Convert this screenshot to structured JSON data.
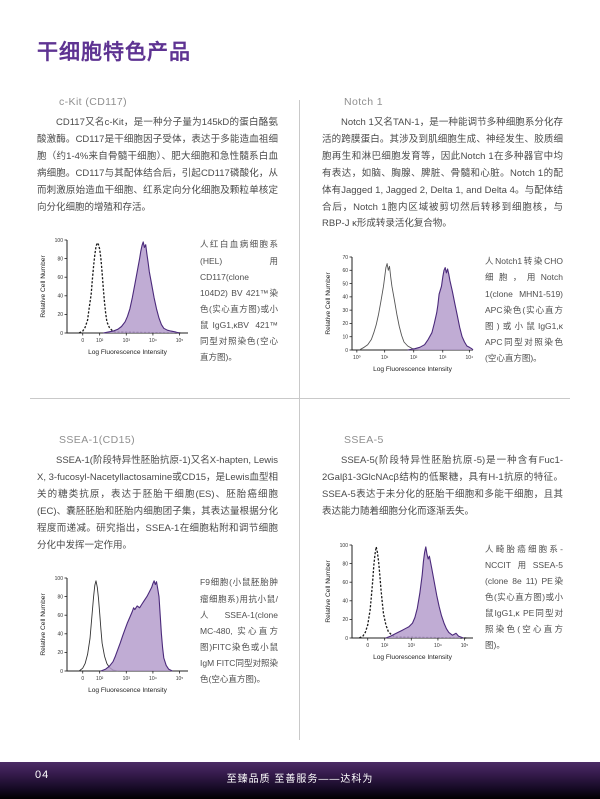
{
  "page": {
    "title": "干细胞特色产品",
    "accent_color": "#5e3392"
  },
  "sections": [
    {
      "heading": "c-Kit (CD117)",
      "body": "CD117又名c-Kit，是一种分子量为145kD的蛋白酪氨酸激酶。CD117是干细胞因子受体，表达于多能造血祖细胞（约1-4%来自骨髓干细胞）、肥大细胞和急性髓系白血病细胞。CD117与其配体结合后，引起CD117磷酸化，从而刺激原始造血干细胞、红系定向分化细胞及颗粒单核定向分化细胞的增殖和存活。",
      "caption": "人红白血病细胞系(HEL)用CD117(clone 104D2) BV 421™染色(实心直方图)或小鼠IgG1,κBV 421™ 同型对照染色(空心直方图)。"
    },
    {
      "heading": "Notch 1",
      "body": "Notch 1又名TAN-1，是一种能调节多种细胞系分化存活的跨膜蛋白。其涉及到肌细胞生成、神经发生、胶质细胞再生和淋巴细胞发育等，因此Notch 1在多种器官中均有表达，如脑、胸腺、脾脏、骨髓和心脏。Notch 1的配体有Jagged 1, Jagged 2, Delta 1, and Delta 4。与配体结合后，Notch 1胞内区域被剪切然后转移到细胞核，与RBP-J κ形成转录活化复合物。",
      "caption": "人Notch1转染CHO细胞，用Notch 1(clone MHN1-519) APC染色(实心直方图)或小鼠IgG1,κ APC同型对照染色(空心直方图)。"
    },
    {
      "heading": "SSEA-1(CD15)",
      "body": "SSEA-1(阶段特异性胚胎抗原-1)又名X-hapten, Lewis X, 3-fucosyl-Nacetyllactosamine或CD15，是Lewis血型相关的糖类抗原，表达于胚胎干细胞(ES)、胚胎癌细胞(EC)、囊胚胚胎和胚胎内细胞团子集，其表达量根据分化程度而递减。研究指出，SSEA-1在细胞粘附和调节细胞分化中发挥一定作用。",
      "caption": "F9细胞(小鼠胚胎肿瘤细胞系)用抗小鼠/人SSEA-1(clone MC-480, 实心直方图)FITC染色或小鼠IgM FITC同型对照染色(空心直方图)。"
    },
    {
      "heading": "SSEA-5",
      "body": "SSEA-5(阶段特异性胚胎抗原-5)是一种含有Fuc1-2Galβ1-3GlcNAcβ结构的低聚糖，具有H-1抗原的特征。SSEA-5表达于未分化的胚胎干细胞和多能干细胞，且其表达能力随着细胞分化而逐渐丢失。",
      "caption": "人畸胎癌细胞系-NCCIT用SSEA-5 (clone 8e 11) PE染色(实心直方图)或小鼠IgG1,κ PE同型对照染色(空心直方图)。"
    }
  ],
  "footer": {
    "page_number": "04",
    "slogan": "至臻品质 至善服务——达科为"
  },
  "chart_data": [
    {
      "type": "area",
      "id": "cd117-bv421-histogram",
      "title": "",
      "xlabel": "Log Fluorescence Intensity",
      "ylabel": "Relative Cell Number",
      "ylim": [
        0,
        100
      ],
      "yticks": [
        0,
        20,
        40,
        60,
        80,
        100
      ],
      "xticks": [
        {
          "pos": 0.13,
          "label": "0"
        },
        {
          "pos": 0.27,
          "label": "10²"
        },
        {
          "pos": 0.49,
          "label": "10³"
        },
        {
          "pos": 0.71,
          "label": "10⁴"
        },
        {
          "pos": 0.93,
          "label": "10⁵"
        }
      ],
      "series": [
        {
          "name": "isotype-control-open",
          "style": "dashed",
          "stroke": "#1a1a1a",
          "points": [
            [
              0.1,
              0
            ],
            [
              0.13,
              2
            ],
            [
              0.15,
              6
            ],
            [
              0.17,
              14
            ],
            [
              0.18,
              24
            ],
            [
              0.2,
              42
            ],
            [
              0.21,
              58
            ],
            [
              0.22,
              72
            ],
            [
              0.23,
              84
            ],
            [
              0.24,
              93
            ],
            [
              0.25,
              97
            ],
            [
              0.26,
              95
            ],
            [
              0.27,
              90
            ],
            [
              0.28,
              80
            ],
            [
              0.29,
              65
            ],
            [
              0.3,
              48
            ],
            [
              0.31,
              33
            ],
            [
              0.32,
              21
            ],
            [
              0.33,
              12
            ],
            [
              0.35,
              6
            ],
            [
              0.37,
              3
            ],
            [
              0.4,
              1
            ],
            [
              0.95,
              0
            ]
          ]
        },
        {
          "name": "cd117-stained-filled",
          "style": "filled",
          "stroke": "#4b2a7b",
          "fill": "#b29aca",
          "points": [
            [
              0.3,
              0
            ],
            [
              0.34,
              1
            ],
            [
              0.38,
              2
            ],
            [
              0.42,
              4
            ],
            [
              0.45,
              7
            ],
            [
              0.48,
              12
            ],
            [
              0.5,
              18
            ],
            [
              0.52,
              26
            ],
            [
              0.54,
              38
            ],
            [
              0.56,
              52
            ],
            [
              0.58,
              66
            ],
            [
              0.6,
              80
            ],
            [
              0.61,
              88
            ],
            [
              0.62,
              94
            ],
            [
              0.63,
              98
            ],
            [
              0.64,
              92
            ],
            [
              0.65,
              95
            ],
            [
              0.66,
              85
            ],
            [
              0.67,
              76
            ],
            [
              0.68,
              66
            ],
            [
              0.7,
              52
            ],
            [
              0.72,
              38
            ],
            [
              0.74,
              26
            ],
            [
              0.76,
              16
            ],
            [
              0.78,
              9
            ],
            [
              0.8,
              5
            ],
            [
              0.83,
              3
            ],
            [
              0.86,
              2
            ],
            [
              0.9,
              1
            ],
            [
              0.93,
              0
            ]
          ]
        }
      ]
    },
    {
      "type": "area",
      "id": "notch1-apc-histogram",
      "title": "",
      "xlabel": "Log Fluorescence Intensity",
      "ylabel": "Relative Cell Number",
      "ylim": [
        0,
        70
      ],
      "yticks": [
        0,
        10,
        20,
        30,
        40,
        50,
        60,
        70
      ],
      "xticks": [
        {
          "pos": 0.04,
          "label": "10⁰"
        },
        {
          "pos": 0.27,
          "label": "10¹"
        },
        {
          "pos": 0.51,
          "label": "10²"
        },
        {
          "pos": 0.75,
          "label": "10³"
        },
        {
          "pos": 0.97,
          "label": "10⁴"
        }
      ],
      "series": [
        {
          "name": "isotype-control-open",
          "style": "solid",
          "stroke": "#555555",
          "points": [
            [
              0.06,
              0
            ],
            [
              0.1,
              2
            ],
            [
              0.13,
              4
            ],
            [
              0.16,
              8
            ],
            [
              0.18,
              13
            ],
            [
              0.2,
              19
            ],
            [
              0.22,
              27
            ],
            [
              0.24,
              37
            ],
            [
              0.26,
              48
            ],
            [
              0.27,
              55
            ],
            [
              0.28,
              62
            ],
            [
              0.29,
              65
            ],
            [
              0.3,
              60
            ],
            [
              0.31,
              63
            ],
            [
              0.32,
              55
            ],
            [
              0.33,
              48
            ],
            [
              0.35,
              38
            ],
            [
              0.37,
              27
            ],
            [
              0.39,
              18
            ],
            [
              0.41,
              11
            ],
            [
              0.43,
              6
            ],
            [
              0.46,
              3
            ],
            [
              0.5,
              1
            ],
            [
              0.56,
              0
            ]
          ]
        },
        {
          "name": "notch1-stained-filled",
          "style": "filled",
          "stroke": "#4b2a7b",
          "fill": "#b29aca",
          "points": [
            [
              0.46,
              0
            ],
            [
              0.52,
              1
            ],
            [
              0.56,
              2
            ],
            [
              0.6,
              4
            ],
            [
              0.63,
              8
            ],
            [
              0.66,
              13
            ],
            [
              0.68,
              20
            ],
            [
              0.7,
              28
            ],
            [
              0.71,
              34
            ],
            [
              0.72,
              42
            ],
            [
              0.74,
              48
            ],
            [
              0.75,
              55
            ],
            [
              0.76,
              60
            ],
            [
              0.77,
              62
            ],
            [
              0.78,
              58
            ],
            [
              0.79,
              61
            ],
            [
              0.8,
              57
            ],
            [
              0.81,
              52
            ],
            [
              0.83,
              44
            ],
            [
              0.85,
              35
            ],
            [
              0.87,
              26
            ],
            [
              0.89,
              17
            ],
            [
              0.91,
              10
            ],
            [
              0.93,
              6
            ],
            [
              0.95,
              3
            ],
            [
              0.97,
              2
            ],
            [
              0.99,
              1
            ],
            [
              1.0,
              0
            ]
          ]
        }
      ]
    },
    {
      "type": "area",
      "id": "ssea1-fitc-histogram",
      "title": "",
      "xlabel": "Log Fluorescence Intensity",
      "ylabel": "Relative Cell Number",
      "ylim": [
        0,
        100
      ],
      "yticks": [
        0,
        20,
        40,
        60,
        80,
        100
      ],
      "xticks": [
        {
          "pos": 0.13,
          "label": "0"
        },
        {
          "pos": 0.27,
          "label": "10²"
        },
        {
          "pos": 0.49,
          "label": "10³"
        },
        {
          "pos": 0.71,
          "label": "10⁴"
        },
        {
          "pos": 0.93,
          "label": "10⁵"
        }
      ],
      "series": [
        {
          "name": "isotype-control-open",
          "style": "solid",
          "stroke": "#333333",
          "points": [
            [
              0.1,
              0
            ],
            [
              0.13,
              3
            ],
            [
              0.15,
              8
            ],
            [
              0.17,
              18
            ],
            [
              0.19,
              35
            ],
            [
              0.2,
              50
            ],
            [
              0.21,
              65
            ],
            [
              0.22,
              80
            ],
            [
              0.23,
              92
            ],
            [
              0.24,
              97
            ],
            [
              0.25,
              90
            ],
            [
              0.26,
              78
            ],
            [
              0.27,
              62
            ],
            [
              0.28,
              45
            ],
            [
              0.29,
              30
            ],
            [
              0.31,
              16
            ],
            [
              0.33,
              8
            ],
            [
              0.35,
              4
            ],
            [
              0.38,
              1
            ],
            [
              0.42,
              0
            ]
          ]
        },
        {
          "name": "ssea1-stained-filled",
          "style": "filled",
          "stroke": "#4b2a7b",
          "fill": "#b29aca",
          "points": [
            [
              0.28,
              0
            ],
            [
              0.32,
              2
            ],
            [
              0.35,
              5
            ],
            [
              0.38,
              10
            ],
            [
              0.4,
              16
            ],
            [
              0.42,
              23
            ],
            [
              0.44,
              30
            ],
            [
              0.46,
              38
            ],
            [
              0.48,
              45
            ],
            [
              0.5,
              52
            ],
            [
              0.52,
              58
            ],
            [
              0.54,
              64
            ],
            [
              0.55,
              68
            ],
            [
              0.56,
              66
            ],
            [
              0.58,
              70
            ],
            [
              0.6,
              68
            ],
            [
              0.62,
              72
            ],
            [
              0.64,
              76
            ],
            [
              0.66,
              80
            ],
            [
              0.68,
              85
            ],
            [
              0.7,
              90
            ],
            [
              0.71,
              94
            ],
            [
              0.72,
              97
            ],
            [
              0.73,
              93
            ],
            [
              0.74,
              96
            ],
            [
              0.75,
              88
            ],
            [
              0.76,
              80
            ],
            [
              0.77,
              60
            ],
            [
              0.78,
              40
            ],
            [
              0.79,
              25
            ],
            [
              0.8,
              14
            ],
            [
              0.82,
              6
            ],
            [
              0.84,
              2
            ],
            [
              0.87,
              0
            ]
          ]
        }
      ]
    },
    {
      "type": "area",
      "id": "ssea5-pe-histogram",
      "title": "",
      "xlabel": "Log Fluorescence Intensity",
      "ylabel": "Relative Cell Number",
      "ylim": [
        0,
        100
      ],
      "yticks": [
        0,
        20,
        40,
        60,
        80,
        100
      ],
      "xticks": [
        {
          "pos": 0.13,
          "label": "0"
        },
        {
          "pos": 0.27,
          "label": "10²"
        },
        {
          "pos": 0.49,
          "label": "10³"
        },
        {
          "pos": 0.71,
          "label": "10⁴"
        },
        {
          "pos": 0.93,
          "label": "10⁵"
        }
      ],
      "series": [
        {
          "name": "isotype-control-open",
          "style": "dashed",
          "stroke": "#1a1a1a",
          "points": [
            [
              0.06,
              0
            ],
            [
              0.09,
              2
            ],
            [
              0.11,
              6
            ],
            [
              0.13,
              14
            ],
            [
              0.15,
              30
            ],
            [
              0.16,
              45
            ],
            [
              0.17,
              60
            ],
            [
              0.18,
              78
            ],
            [
              0.19,
              90
            ],
            [
              0.2,
              98
            ],
            [
              0.21,
              92
            ],
            [
              0.22,
              82
            ],
            [
              0.23,
              68
            ],
            [
              0.24,
              52
            ],
            [
              0.25,
              38
            ],
            [
              0.26,
              26
            ],
            [
              0.28,
              14
            ],
            [
              0.3,
              7
            ],
            [
              0.33,
              3
            ],
            [
              0.36,
              1
            ],
            [
              0.95,
              0
            ]
          ]
        },
        {
          "name": "ssea5-stained-filled",
          "style": "filled",
          "stroke": "#4b2a7b",
          "fill": "#b29aca",
          "points": [
            [
              0.28,
              0
            ],
            [
              0.32,
              2
            ],
            [
              0.35,
              4
            ],
            [
              0.38,
              6
            ],
            [
              0.41,
              8
            ],
            [
              0.44,
              10
            ],
            [
              0.47,
              12
            ],
            [
              0.5,
              16
            ],
            [
              0.52,
              22
            ],
            [
              0.54,
              32
            ],
            [
              0.56,
              48
            ],
            [
              0.58,
              68
            ],
            [
              0.59,
              82
            ],
            [
              0.6,
              92
            ],
            [
              0.61,
              98
            ],
            [
              0.62,
              90
            ],
            [
              0.63,
              85
            ],
            [
              0.64,
              88
            ],
            [
              0.66,
              74
            ],
            [
              0.68,
              60
            ],
            [
              0.7,
              46
            ],
            [
              0.72,
              34
            ],
            [
              0.74,
              24
            ],
            [
              0.76,
              16
            ],
            [
              0.78,
              10
            ],
            [
              0.8,
              6
            ],
            [
              0.83,
              3
            ],
            [
              0.86,
              5
            ],
            [
              0.88,
              2
            ],
            [
              0.92,
              0
            ]
          ]
        }
      ]
    }
  ]
}
